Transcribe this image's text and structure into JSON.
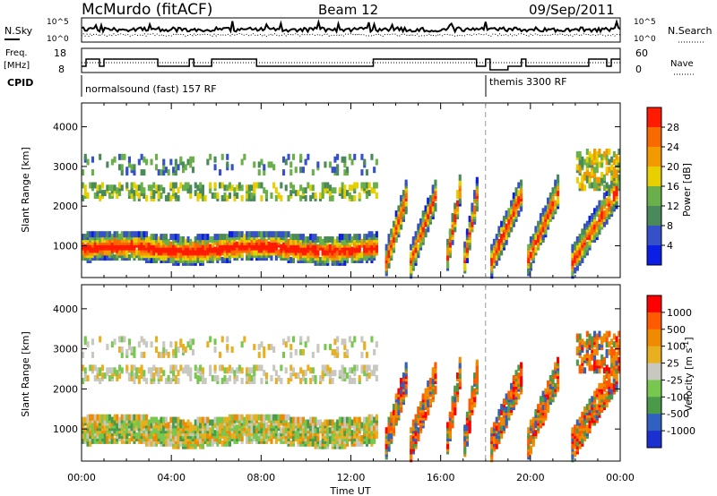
{
  "header": {
    "station": "McMurdo (fitACF)",
    "beam": "Beam 12",
    "date": "09/Sep/2011"
  },
  "status_panels": {
    "nsky_label": "N.Sky",
    "nsearch_label": "N.Search",
    "noise_ticks": [
      "10^5",
      "10^0"
    ],
    "freq_label": "Freq.",
    "freq_unit": "[MHz]",
    "freq_ticks": [
      "18",
      "8"
    ],
    "nave_label": "Nave",
    "nave_ticks": [
      "60",
      "0"
    ],
    "cpid_label": "CPID",
    "cpid_segments": [
      {
        "name": "normalsound (fast) 157 RF",
        "start_hour": 0
      },
      {
        "name": "themis 3300 RF",
        "start_hour": 18
      }
    ]
  },
  "colors": {
    "power": [
      "#0a1ee6",
      "#3550c8",
      "#4a8a5a",
      "#6ab04a",
      "#e8d000",
      "#f39a00",
      "#f86a00",
      "#ff1a00"
    ],
    "velocity": [
      "#ff0000",
      "#ff5a00",
      "#f08a00",
      "#e8b020",
      "#c8c8c0",
      "#78c850",
      "#4a9a4a",
      "#3060c0",
      "#1a30d0"
    ]
  },
  "chart_data": [
    {
      "type": "heatmap",
      "name": "power-panel",
      "ylabel": "Slant Range [km]",
      "x_ticks": [
        "00:00",
        "04:00",
        "08:00",
        "12:00",
        "16:00",
        "20:00",
        "00:00"
      ],
      "y_ticks": [
        1000,
        2000,
        3000,
        4000
      ],
      "ylim": [
        200,
        4600
      ],
      "xlim_hours": [
        0,
        24
      ],
      "colorbar_label": "Power [dB]",
      "colorbar_ticks": [
        "4",
        "8",
        "12",
        "16",
        "20",
        "24",
        "28"
      ]
    },
    {
      "type": "heatmap",
      "name": "velocity-panel",
      "ylabel": "Slant Range [km]",
      "xlabel": "Time UT",
      "x_ticks": [
        "00:00",
        "04:00",
        "08:00",
        "12:00",
        "16:00",
        "20:00",
        "00:00"
      ],
      "y_ticks": [
        1000,
        2000,
        3000,
        4000
      ],
      "ylim": [
        200,
        4600
      ],
      "xlim_hours": [
        0,
        24
      ],
      "colorbar_label": "Velocity [m s",
      "colorbar_sup": "-1",
      "colorbar_label_end": "]",
      "colorbar_ticks": [
        "1000",
        "500",
        "100",
        "25",
        "-25",
        "-100",
        "-500",
        "-1000"
      ]
    }
  ]
}
